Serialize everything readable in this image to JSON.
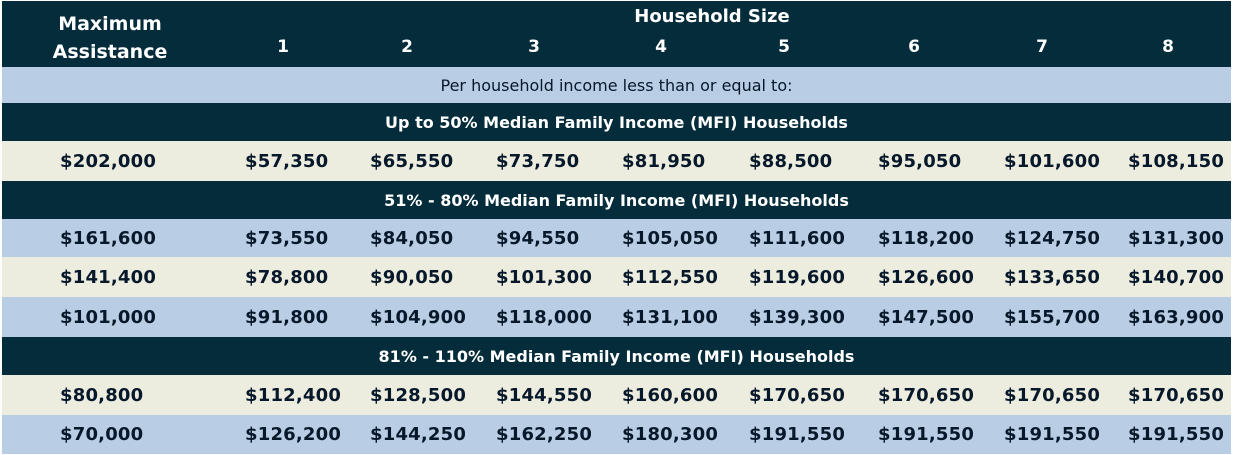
{
  "header": {
    "max_assistance_label_line1": "Maximum",
    "max_assistance_label_line2": "Assistance",
    "household_size_label": "Household Size",
    "sizes": [
      "1",
      "2",
      "3",
      "4",
      "5",
      "6",
      "7",
      "8"
    ]
  },
  "subheader": "Per household income less than or equal to:",
  "sections": [
    {
      "title": "Up to 50% Median Family Income (MFI) Households",
      "rows": [
        [
          "$202,000",
          "$57,350",
          "$65,550",
          "$73,750",
          "$81,950",
          "$88,500",
          "$95,050",
          "$101,600",
          "$108,150"
        ]
      ]
    },
    {
      "title": "51% - 80% Median Family Income (MFI) Households",
      "rows": [
        [
          "$161,600",
          "$73,550",
          "$84,050",
          "$94,550",
          "$105,050",
          "$111,600",
          "$118,200",
          "$124,750",
          "$131,300"
        ],
        [
          "$141,400",
          "$78,800",
          "$90,050",
          "$101,300",
          "$112,550",
          "$119,600",
          "$126,600",
          "$133,650",
          "$140,700"
        ],
        [
          "$101,000",
          "$91,800",
          "$104,900",
          "$118,000",
          "$131,100",
          "$139,300",
          "$147,500",
          "$155,700",
          "$163,900"
        ]
      ]
    },
    {
      "title": "81% - 110% Median Family Income (MFI) Households",
      "rows": [
        [
          "$80,800",
          "$112,400",
          "$128,500",
          "$144,550",
          "$160,600",
          "$170,650",
          "$170,650",
          "$170,650",
          "$170,650"
        ],
        [
          "$70,000",
          "$126,200",
          "$144,250",
          "$162,250",
          "$180,300",
          "$191,550",
          "$191,550",
          "$191,550",
          "$191,550"
        ]
      ]
    }
  ],
  "colors": {
    "dark_band": "#052c3b",
    "light_blue": "#b9cde5",
    "cream": "#ececdf",
    "text_dark": "#07182a"
  }
}
